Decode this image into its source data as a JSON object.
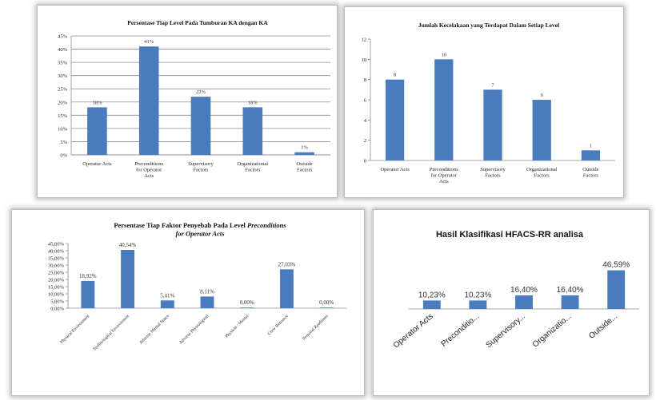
{
  "charts": [
    {
      "type": "bar",
      "title": "Persentase Tiap Level Pada Tumburan KA dengan KA",
      "categories": [
        "Operator Acts",
        "Preconditions for Operator Acts",
        "Supervisory Factors",
        "Organizational Factors",
        "Outside Factors"
      ],
      "values": [
        18,
        41,
        22,
        18,
        1
      ],
      "data_labels": [
        "18%",
        "41%",
        "22%",
        "18%",
        "1%"
      ],
      "y_ticks": [
        "0%",
        "5%",
        "10%",
        "15%",
        "20%",
        "25%",
        "30%",
        "35%",
        "40%",
        "45%"
      ],
      "ylim": [
        0,
        45
      ],
      "grid": true,
      "bar_color": "#4a7bbf"
    },
    {
      "type": "bar",
      "title": "Jumlah Kecelakaan yang Terdapat Dalam Setiap Level",
      "categories": [
        "Operator Acts",
        "Preconditions for Operator Acts",
        "Supervisory Factors",
        "Organizational Factors",
        "Outside Factors"
      ],
      "values": [
        8,
        10,
        7,
        6,
        1
      ],
      "data_labels": [
        "8",
        "10",
        "7",
        "6",
        "1"
      ],
      "y_ticks": [
        "0",
        "2",
        "4",
        "6",
        "8",
        "10",
        "12"
      ],
      "ylim": [
        0,
        12
      ],
      "grid": false,
      "bar_color": "#4a7bbf"
    },
    {
      "type": "bar",
      "title": "Persentase Tiap Faktor Penyebab Pada Level",
      "title_italic": "Preconditions",
      "title_line2": "for Operator Acts",
      "categories": [
        "Physical Environment",
        "Technological Environment",
        "Adverse Mental States",
        "Adverse Physiological",
        "Physical / Mental",
        "Crew Resource",
        "Personal Readiness"
      ],
      "values": [
        18.92,
        40.54,
        5.41,
        8.11,
        0.0,
        27.03,
        0.0
      ],
      "data_labels": [
        "18,92%",
        "40,54%",
        "5,41%",
        "8,11%",
        "0,00%",
        "27,03%",
        "0,00%"
      ],
      "y_ticks": [
        "0,00%",
        "5,00%",
        "10,00%",
        "15,00%",
        "20,00%",
        "25,00%",
        "30,00%",
        "35,00%",
        "40,00%",
        "45,00%"
      ],
      "ylim": [
        0,
        45
      ],
      "grid": false,
      "bar_color": "#4a7bbf"
    },
    {
      "type": "bar",
      "title": "Hasil Klasifikasi HFACS-RR analisa",
      "categories": [
        "Operator Acts",
        "Preconditio...",
        "Supervisory...",
        "Organizatio...",
        "Outside..."
      ],
      "values": [
        10.23,
        10.23,
        16.4,
        16.4,
        46.59
      ],
      "data_labels": [
        "10,23%",
        "10,23%",
        "16,40%",
        "16,40%",
        "46,59%"
      ],
      "ylim": [
        0,
        50
      ],
      "grid": false,
      "bar_color": "#4a7bbf"
    }
  ]
}
